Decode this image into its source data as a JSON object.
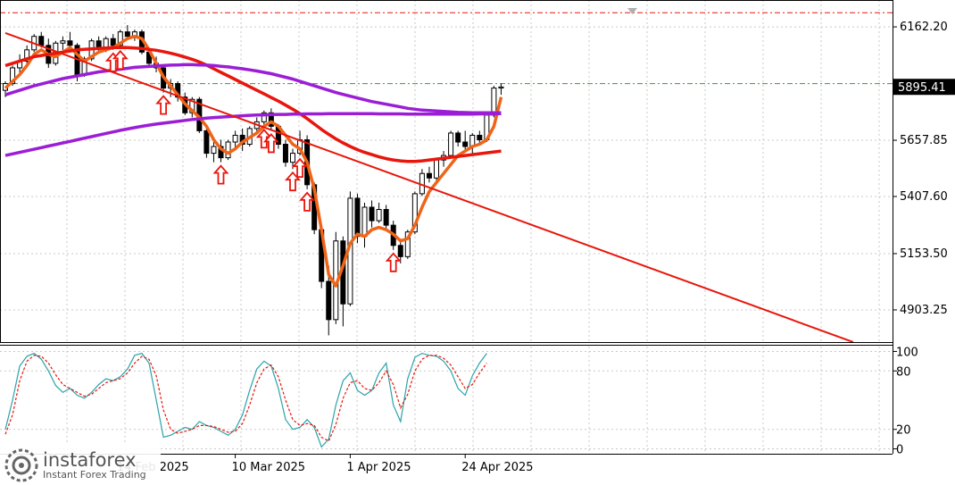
{
  "chart_data": {
    "type": "candlestick",
    "instrument_price_axis": {
      "ticks": [
        "6162.20",
        "5657.85",
        "5407.60",
        "5153.50",
        "4903.25"
      ],
      "tick_values": [
        6162.2,
        5657.85,
        5407.6,
        5153.5,
        4903.25
      ],
      "current_price": "5895.41",
      "current_value": 5895.41,
      "ylim": [
        4760,
        6250
      ]
    },
    "x_axis": {
      "tick_labels": [
        "14 Feb 2025",
        "10 Mar 2025",
        "1 Apr 2025",
        "24 Apr 2025"
      ],
      "tick_index": [
        16,
        32,
        48,
        64
      ]
    },
    "candles": [
      [
        5880,
        5920,
        5850,
        5910
      ],
      [
        5910,
        5990,
        5900,
        5980
      ],
      [
        5980,
        6040,
        5960,
        6010
      ],
      [
        6010,
        6080,
        6000,
        6060
      ],
      [
        6060,
        6130,
        6050,
        6120
      ],
      [
        6120,
        6140,
        6070,
        6080
      ],
      [
        6080,
        6110,
        5980,
        6000
      ],
      [
        6000,
        6100,
        5990,
        6090
      ],
      [
        6090,
        6120,
        6060,
        6100
      ],
      [
        6100,
        6140,
        6070,
        6080
      ],
      [
        6080,
        6090,
        5920,
        5950
      ],
      [
        5950,
        6030,
        5940,
        6020
      ],
      [
        6020,
        6110,
        6010,
        6100
      ],
      [
        6100,
        6120,
        6050,
        6070
      ],
      [
        6070,
        6120,
        6050,
        6110
      ],
      [
        6110,
        6130,
        6060,
        6080
      ],
      [
        6080,
        6150,
        6070,
        6140
      ],
      [
        6140,
        6170,
        6110,
        6120
      ],
      [
        6120,
        6150,
        6100,
        6140
      ],
      [
        6140,
        6150,
        6040,
        6050
      ],
      [
        6050,
        6060,
        5980,
        6000
      ],
      [
        6000,
        6030,
        5960,
        5980
      ],
      [
        5980,
        5990,
        5870,
        5890
      ],
      [
        5890,
        5930,
        5850,
        5910
      ],
      [
        5910,
        5920,
        5830,
        5850
      ],
      [
        5850,
        5870,
        5770,
        5780
      ],
      [
        5780,
        5850,
        5760,
        5840
      ],
      [
        5840,
        5850,
        5690,
        5700
      ],
      [
        5700,
        5720,
        5580,
        5600
      ],
      [
        5600,
        5650,
        5560,
        5630
      ],
      [
        5630,
        5660,
        5560,
        5580
      ],
      [
        5580,
        5660,
        5570,
        5650
      ],
      [
        5650,
        5700,
        5620,
        5680
      ],
      [
        5680,
        5710,
        5610,
        5640
      ],
      [
        5640,
        5720,
        5630,
        5710
      ],
      [
        5710,
        5760,
        5690,
        5740
      ],
      [
        5740,
        5790,
        5720,
        5780
      ],
      [
        5780,
        5800,
        5700,
        5720
      ],
      [
        5720,
        5730,
        5620,
        5640
      ],
      [
        5640,
        5660,
        5540,
        5560
      ],
      [
        5560,
        5620,
        5530,
        5600
      ],
      [
        5600,
        5700,
        5590,
        5660
      ],
      [
        5660,
        5680,
        5440,
        5460
      ],
      [
        5460,
        5470,
        5240,
        5260
      ],
      [
        5260,
        5280,
        5000,
        5030
      ],
      [
        5030,
        5100,
        4790,
        4860
      ],
      [
        4860,
        5250,
        4840,
        5210
      ],
      [
        5210,
        5230,
        4830,
        4930
      ],
      [
        4930,
        5430,
        4920,
        5400
      ],
      [
        5400,
        5420,
        5200,
        5230
      ],
      [
        5230,
        5380,
        5180,
        5360
      ],
      [
        5360,
        5390,
        5270,
        5300
      ],
      [
        5300,
        5380,
        5290,
        5350
      ],
      [
        5350,
        5370,
        5260,
        5280
      ],
      [
        5280,
        5300,
        5170,
        5190
      ],
      [
        5190,
        5220,
        5110,
        5140
      ],
      [
        5140,
        5260,
        5130,
        5250
      ],
      [
        5250,
        5430,
        5240,
        5420
      ],
      [
        5420,
        5530,
        5410,
        5510
      ],
      [
        5510,
        5540,
        5470,
        5490
      ],
      [
        5490,
        5580,
        5480,
        5570
      ],
      [
        5570,
        5610,
        5540,
        5590
      ],
      [
        5590,
        5700,
        5580,
        5690
      ],
      [
        5690,
        5700,
        5630,
        5650
      ],
      [
        5650,
        5700,
        5610,
        5630
      ],
      [
        5630,
        5690,
        5600,
        5680
      ],
      [
        5680,
        5700,
        5640,
        5660
      ],
      [
        5660,
        5780,
        5650,
        5770
      ],
      [
        5770,
        5900,
        5760,
        5890
      ],
      [
        5890,
        5910,
        5860,
        5895
      ]
    ],
    "moving_averages": [
      {
        "color": "#f06418",
        "values": [
          5890,
          5920,
          5950,
          5990,
          6040,
          6060,
          6040,
          6030,
          6050,
          6070,
          6040,
          6010,
          6030,
          6050,
          6060,
          6070,
          6090,
          6110,
          6120,
          6110,
          6060,
          6000,
          5940,
          5900,
          5860,
          5820,
          5790,
          5760,
          5720,
          5660,
          5620,
          5600,
          5620,
          5650,
          5670,
          5690,
          5720,
          5740,
          5720,
          5680,
          5640,
          5620,
          5560,
          5440,
          5260,
          5060,
          5010,
          5100,
          5200,
          5240,
          5230,
          5260,
          5270,
          5260,
          5240,
          5210,
          5220,
          5280,
          5360,
          5430,
          5470,
          5510,
          5550,
          5590,
          5610,
          5630,
          5640,
          5660,
          5720,
          5850
        ]
      },
      {
        "color": "#e8160c",
        "values": [
          5990,
          6000,
          6010,
          6020,
          6030,
          6035,
          6040,
          6045,
          6050,
          6055,
          6060,
          6062,
          6064,
          6066,
          6068,
          6070,
          6070,
          6070,
          6068,
          6066,
          6062,
          6058,
          6052,
          6045,
          6037,
          6028,
          6018,
          6006,
          5992,
          5976,
          5960,
          5944,
          5928,
          5912,
          5896,
          5880,
          5864,
          5848,
          5832,
          5814,
          5796,
          5776,
          5754,
          5730,
          5706,
          5684,
          5664,
          5646,
          5630,
          5616,
          5604,
          5594,
          5584,
          5576,
          5570,
          5566,
          5564,
          5564,
          5566,
          5570,
          5574,
          5578,
          5582,
          5586,
          5590,
          5594,
          5598,
          5602,
          5606,
          5610
        ]
      },
      {
        "color": "#9b1ed6",
        "values": [
          5860,
          5870,
          5880,
          5890,
          5900,
          5908,
          5916,
          5924,
          5932,
          5938,
          5944,
          5950,
          5956,
          5962,
          5966,
          5970,
          5974,
          5978,
          5982,
          5984,
          5986,
          5988,
          5990,
          5992,
          5993,
          5994,
          5994,
          5993,
          5992,
          5990,
          5987,
          5984,
          5980,
          5976,
          5971,
          5966,
          5960,
          5954,
          5946,
          5938,
          5930,
          5920,
          5910,
          5900,
          5890,
          5880,
          5870,
          5862,
          5854,
          5846,
          5838,
          5830,
          5824,
          5818,
          5812,
          5806,
          5800,
          5796,
          5792,
          5790,
          5788,
          5786,
          5784,
          5782,
          5781,
          5780,
          5780,
          5780,
          5780,
          5780
        ]
      },
      {
        "color": "#9b1ed6",
        "values": [
          5590,
          5597,
          5604,
          5611,
          5618,
          5625,
          5632,
          5639,
          5646,
          5653,
          5660,
          5667,
          5674,
          5681,
          5688,
          5695,
          5702,
          5708,
          5714,
          5720,
          5725,
          5730,
          5734,
          5738,
          5742,
          5746,
          5750,
          5753,
          5756,
          5759,
          5761,
          5763,
          5765,
          5767,
          5769,
          5770,
          5771,
          5772,
          5773,
          5773,
          5774,
          5774,
          5775,
          5775,
          5775,
          5776,
          5776,
          5776,
          5776,
          5776,
          5776,
          5776,
          5775,
          5775,
          5775,
          5775,
          5774,
          5774,
          5774,
          5774,
          5774,
          5774,
          5774,
          5774,
          5774,
          5774,
          5775,
          5775,
          5775,
          5776
        ]
      }
    ],
    "up_arrows_at_index": [
      15,
      16,
      22,
      30,
      36,
      37,
      40,
      41,
      42,
      54
    ],
    "trendline": {
      "color": "#e8160c",
      "from": [
        0,
        6135
      ],
      "to": [
        118,
        4760
      ]
    },
    "horizontal_levels": [
      {
        "value": 6225,
        "color": "#e8160c",
        "style": "dash-dot"
      },
      {
        "value": 5910,
        "color": "#2e9e2e",
        "style": "dash-dot"
      }
    ],
    "oscillator": {
      "type": "stochastic",
      "ticks": [
        "100",
        "80",
        "20",
        "0"
      ],
      "tick_values": [
        100,
        80,
        20,
        0
      ],
      "ylim": [
        -5,
        105
      ],
      "main_color": "#2aa3a8",
      "signal_color": "#e8160c",
      "main": [
        20,
        50,
        85,
        95,
        98,
        92,
        80,
        65,
        58,
        62,
        55,
        52,
        58,
        66,
        72,
        70,
        74,
        82,
        96,
        98,
        88,
        50,
        12,
        14,
        18,
        22,
        20,
        28,
        24,
        22,
        18,
        14,
        20,
        35,
        60,
        82,
        90,
        85,
        62,
        30,
        20,
        22,
        30,
        22,
        2,
        10,
        45,
        70,
        78,
        60,
        55,
        60,
        78,
        88,
        45,
        28,
        72,
        94,
        98,
        96,
        95,
        90,
        80,
        62,
        55,
        75,
        88,
        98
      ],
      "signal": [
        15,
        35,
        70,
        90,
        96,
        95,
        88,
        76,
        66,
        62,
        58,
        54,
        56,
        62,
        68,
        70,
        72,
        78,
        88,
        95,
        92,
        75,
        40,
        20,
        16,
        18,
        20,
        24,
        24,
        23,
        20,
        17,
        18,
        26,
        45,
        68,
        82,
        86,
        74,
        50,
        30,
        24,
        26,
        24,
        12,
        8,
        25,
        52,
        68,
        70,
        62,
        60,
        68,
        80,
        66,
        42,
        56,
        80,
        92,
        96,
        96,
        93,
        86,
        74,
        62,
        66,
        78,
        88
      ]
    }
  },
  "watermark": {
    "brand": "instaforex",
    "tagline": "Instant Forex Trading"
  }
}
